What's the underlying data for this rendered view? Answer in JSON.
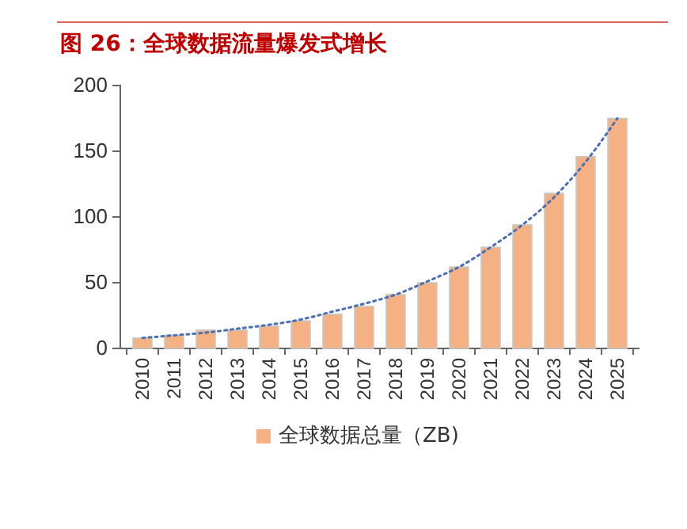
{
  "chart_data": {
    "type": "bar",
    "title": "图 26：全球数据流量爆发式增长",
    "categories": [
      "2010",
      "2011",
      "2012",
      "2013",
      "2014",
      "2015",
      "2016",
      "2017",
      "2018",
      "2019",
      "2020",
      "2021",
      "2022",
      "2023",
      "2024",
      "2025"
    ],
    "series": [
      {
        "name": "全球数据总量（ZB)",
        "color": "#f4b183",
        "values": [
          8,
          10,
          14,
          14,
          17,
          21,
          26,
          32,
          41,
          50,
          62,
          77,
          94,
          118,
          146,
          175
        ]
      },
      {
        "type": "line",
        "color": "#4a6fb5",
        "line_style": "dotted",
        "marker": "none",
        "values": [
          8,
          10,
          12,
          15,
          18,
          22,
          28,
          34,
          41,
          51,
          62,
          77,
          94,
          115,
          142,
          175
        ]
      }
    ],
    "ylim": [
      0,
      200
    ],
    "yticks": [
      0,
      50,
      100,
      150,
      200
    ],
    "grid": false,
    "legend": "bottom"
  }
}
